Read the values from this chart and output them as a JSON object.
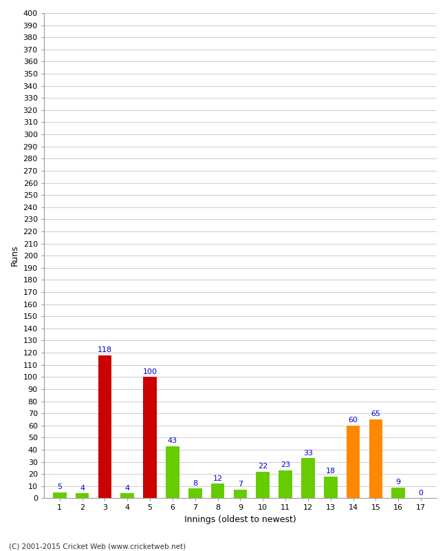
{
  "title": "",
  "xlabel": "Innings (oldest to newest)",
  "ylabel": "Runs",
  "values": [
    5,
    4,
    118,
    4,
    100,
    43,
    8,
    12,
    7,
    22,
    23,
    33,
    18,
    60,
    65,
    9,
    0
  ],
  "colors": [
    "#66cc00",
    "#66cc00",
    "#cc0000",
    "#66cc00",
    "#cc0000",
    "#66cc00",
    "#66cc00",
    "#66cc00",
    "#66cc00",
    "#66cc00",
    "#66cc00",
    "#66cc00",
    "#66cc00",
    "#ff8800",
    "#ff8800",
    "#66cc00",
    "#66cc00"
  ],
  "categories": [
    "1",
    "2",
    "3",
    "4",
    "5",
    "6",
    "7",
    "8",
    "9",
    "10",
    "11",
    "12",
    "13",
    "14",
    "15",
    "16",
    "17"
  ],
  "ylim": [
    0,
    400
  ],
  "ytick_step": 10,
  "label_color": "#0000cc",
  "background_color": "#ffffff",
  "grid_color": "#cccccc",
  "footer": "(C) 2001-2015 Cricket Web (www.cricketweb.net)"
}
